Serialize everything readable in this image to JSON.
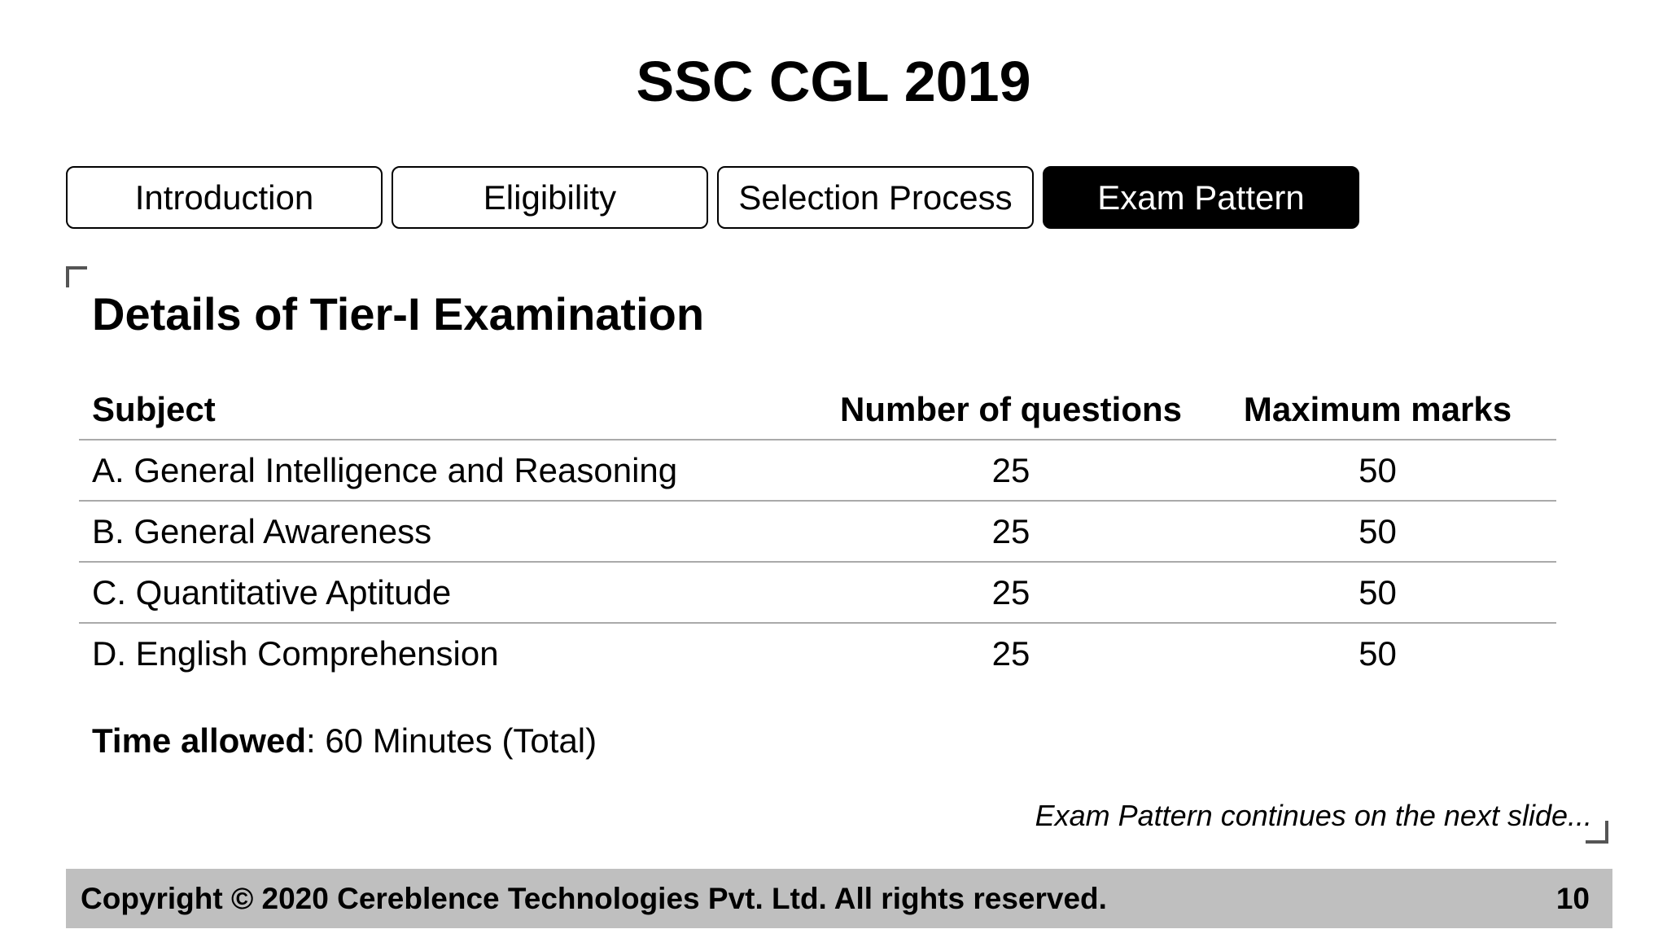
{
  "slide": {
    "title": "SSC CGL 2019"
  },
  "tabs": [
    {
      "label": "Introduction",
      "active": false
    },
    {
      "label": "Eligibility",
      "active": false
    },
    {
      "label": "Selection Process",
      "active": false
    },
    {
      "label": "Exam Pattern",
      "active": true
    }
  ],
  "section": {
    "heading": "Details of Tier-I Examination"
  },
  "table": {
    "headers": [
      "Subject",
      "Number of questions",
      "Maximum marks"
    ],
    "rows": [
      [
        "A. General Intelligence and Reasoning",
        "25",
        "50"
      ],
      [
        "B. General Awareness",
        "25",
        "50"
      ],
      [
        "C. Quantitative Aptitude",
        "25",
        "50"
      ],
      [
        "D. English Comprehension",
        "25",
        "50"
      ]
    ]
  },
  "time": {
    "label": "Time allowed",
    "value": ": 60 Minutes (Total)"
  },
  "note": "Exam Pattern continues on the next slide...",
  "footer": {
    "copyright": "Copyright © 2020 Cereblence Technologies Pvt. Ltd. All rights reserved.",
    "page_number": "10"
  },
  "colors": {
    "active_tab_bg": "#000000",
    "footer_bg": "#bfbfbf",
    "row_divider": "#aaaaaa"
  }
}
